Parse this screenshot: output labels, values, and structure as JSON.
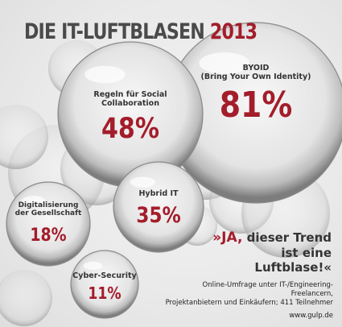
{
  "title": {
    "main": "DIE IT-LUFTBLASEN",
    "year": "2013"
  },
  "chart_data": {
    "type": "bubble",
    "title": "DIE IT-LUFTBLASEN 2013",
    "unit": "%",
    "series": [
      {
        "label": "BYOID\n(Bring Your Own Identity)",
        "value": 81,
        "value_text": "81%"
      },
      {
        "label": "Regeln für Social\nCollaboration",
        "value": 48,
        "value_text": "48%"
      },
      {
        "label": "Hybrid IT",
        "value": 35,
        "value_text": "35%"
      },
      {
        "label": "Digitalisierung\nder Gesellschaft",
        "value": 18,
        "value_text": "18%"
      },
      {
        "label": "Cyber-Security",
        "value": 11,
        "value_text": "11%"
      }
    ]
  },
  "quote": {
    "ja": "»JA,",
    "rest": " dieser Trend ist eine Luftblase!«"
  },
  "source": "Online-Umfrage unter IT-/Engineering-Freelancern,\nProjektanbietern und Einkäufern; 411 Teilnehmer",
  "url": "www.gulp.de"
}
